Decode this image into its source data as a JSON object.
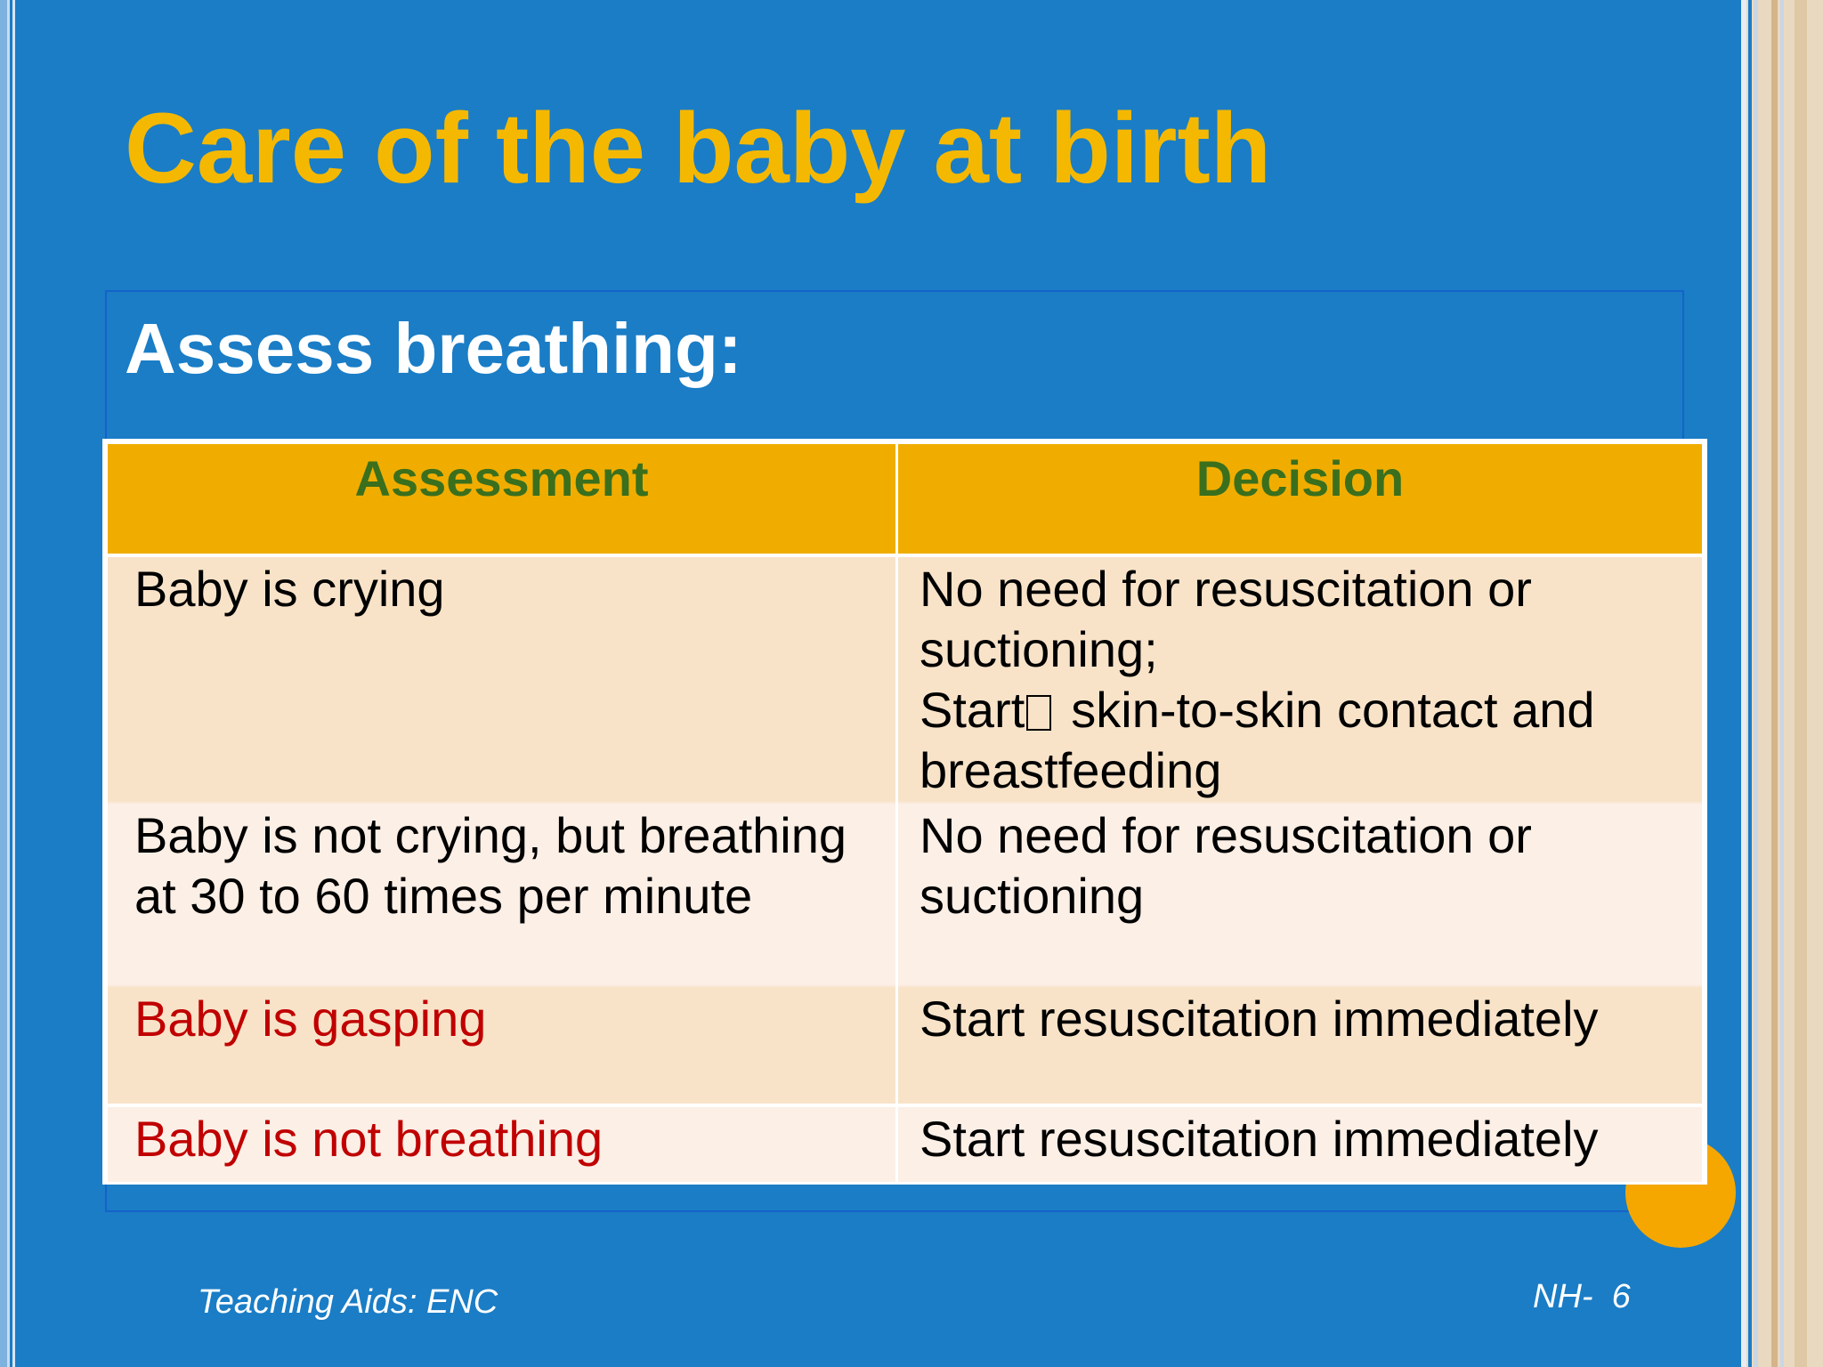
{
  "slide": {
    "title": "Care of the baby at birth",
    "subtitle": "Assess breathing:",
    "colors": {
      "background": "#1a7dc6",
      "title": "#f5b800",
      "header_fill": "#f0ad00",
      "header_text": "#3a6f1d",
      "warning_text": "#c00000"
    }
  },
  "table": {
    "headers": [
      "Assessment",
      "Decision"
    ],
    "rows": [
      {
        "assessment": "Baby is crying",
        "decision_lines": [
          "No need for resuscitation or",
          "suctioning;",
          "Start",
          "skin-to-skin contact and",
          "breastfeeding"
        ]
      },
      {
        "assessment_lines": [
          "Baby is not crying, but breathing",
          "at 30 to 60 times per minute"
        ],
        "decision_lines": [
          "No need for resuscitation or",
          "suctioning"
        ]
      },
      {
        "assessment": "Baby is gasping",
        "decision": "Start resuscitation immediately"
      },
      {
        "assessment": "Baby is not breathing",
        "decision": "Start resuscitation immediately"
      }
    ]
  },
  "footer": {
    "left": "Teaching Aids: ENC",
    "right": "NH-  6"
  }
}
